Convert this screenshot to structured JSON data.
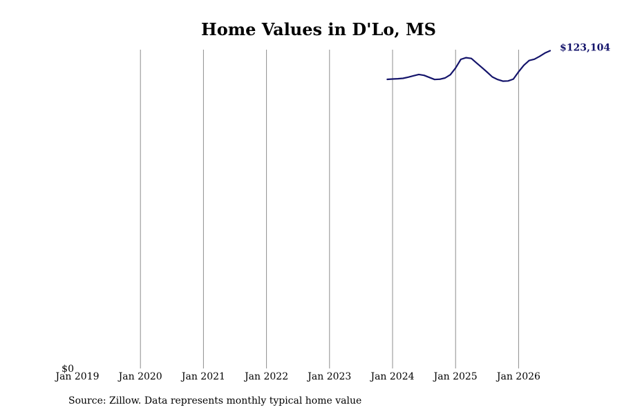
{
  "chart_data": {
    "type": "line",
    "title": "Home Values in D'Lo, MS",
    "xlabel": "",
    "ylabel": "",
    "x_tick_labels": [
      "Jan 2019",
      "Jan 2020",
      "Jan 2021",
      "Jan 2022",
      "Jan 2023",
      "Jan 2024",
      "Jan 2025",
      "Jan 2026"
    ],
    "y_tick_labels": [
      "$0"
    ],
    "xlim": [
      "2019-01",
      "2026-07"
    ],
    "ylim": [
      0,
      123500
    ],
    "grid": "vertical",
    "line_color": "#14146b",
    "end_label": "$123,104",
    "series": [
      {
        "x": [
          "2023-12",
          "2024-01",
          "2024-02",
          "2024-03",
          "2024-04",
          "2024-05",
          "2024-06",
          "2024-07",
          "2024-08",
          "2024-09",
          "2024-10",
          "2024-11",
          "2024-12",
          "2025-01",
          "2025-02",
          "2025-03",
          "2025-04",
          "2025-05",
          "2025-06",
          "2025-07",
          "2025-08",
          "2025-09",
          "2025-10",
          "2025-11",
          "2025-12",
          "2026-01",
          "2026-02",
          "2026-03",
          "2026-04",
          "2026-05",
          "2026-06",
          "2026-07"
        ],
        "y": [
          112000,
          112150,
          112250,
          112400,
          112850,
          113400,
          113900,
          113550,
          112750,
          111950,
          112050,
          112550,
          113800,
          116400,
          119750,
          120400,
          120100,
          118350,
          116600,
          114800,
          112950,
          111950,
          111300,
          111400,
          112100,
          114950,
          117450,
          119300,
          119800,
          120900,
          122200,
          123104
        ]
      }
    ]
  },
  "footer": {
    "source": "Source: Zillow. Data represents monthly typical home value"
  }
}
